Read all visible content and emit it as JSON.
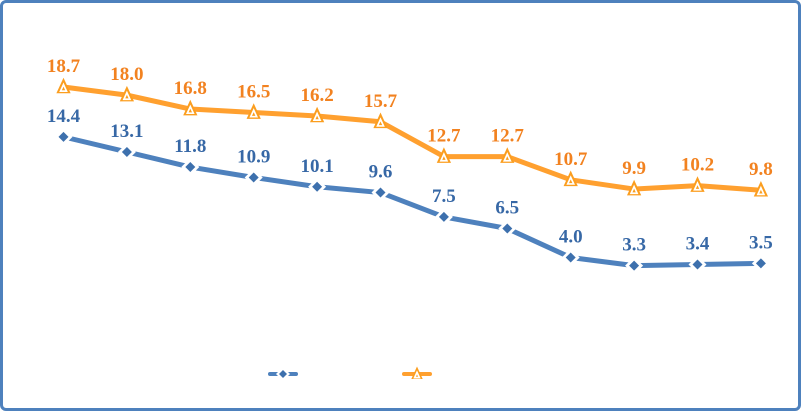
{
  "frame": {
    "border_color": "#4E81BD",
    "background_color": "#FFFFFF"
  },
  "chart_data": {
    "type": "line",
    "title": "",
    "xlabel": "",
    "ylabel": "",
    "axes_visible": false,
    "gridlines": false,
    "x_tick_labels": [],
    "num_points": 12,
    "data_labels": true,
    "data_label_format": "0.1f",
    "series": [
      {
        "name": "blue-diamond-series",
        "marker": "diamond",
        "line_color": "#4E81BD",
        "marker_fill": "#3D70AD",
        "marker_outline": "#FFFFFF",
        "label_color": "#3768A6",
        "values": [
          14.4,
          13.1,
          11.8,
          10.9,
          10.1,
          9.6,
          7.5,
          6.5,
          4.0,
          3.3,
          3.4,
          3.5
        ]
      },
      {
        "name": "orange-triangle-series",
        "marker": "triangle",
        "line_color": "#FFA02F",
        "marker_fill": "#FB9E1F",
        "marker_outline": "#FFFFFF",
        "label_color": "#F28220",
        "values": [
          18.7,
          18.0,
          16.8,
          16.5,
          16.2,
          15.7,
          12.7,
          12.7,
          10.7,
          9.9,
          10.2,
          9.8
        ]
      }
    ],
    "legend": {
      "position": "bottom-center",
      "items": [
        {
          "series": "blue-diamond-series",
          "marker": "diamond",
          "label": ""
        },
        {
          "series": "orange-triangle-series",
          "marker": "triangle",
          "label": ""
        }
      ]
    }
  }
}
